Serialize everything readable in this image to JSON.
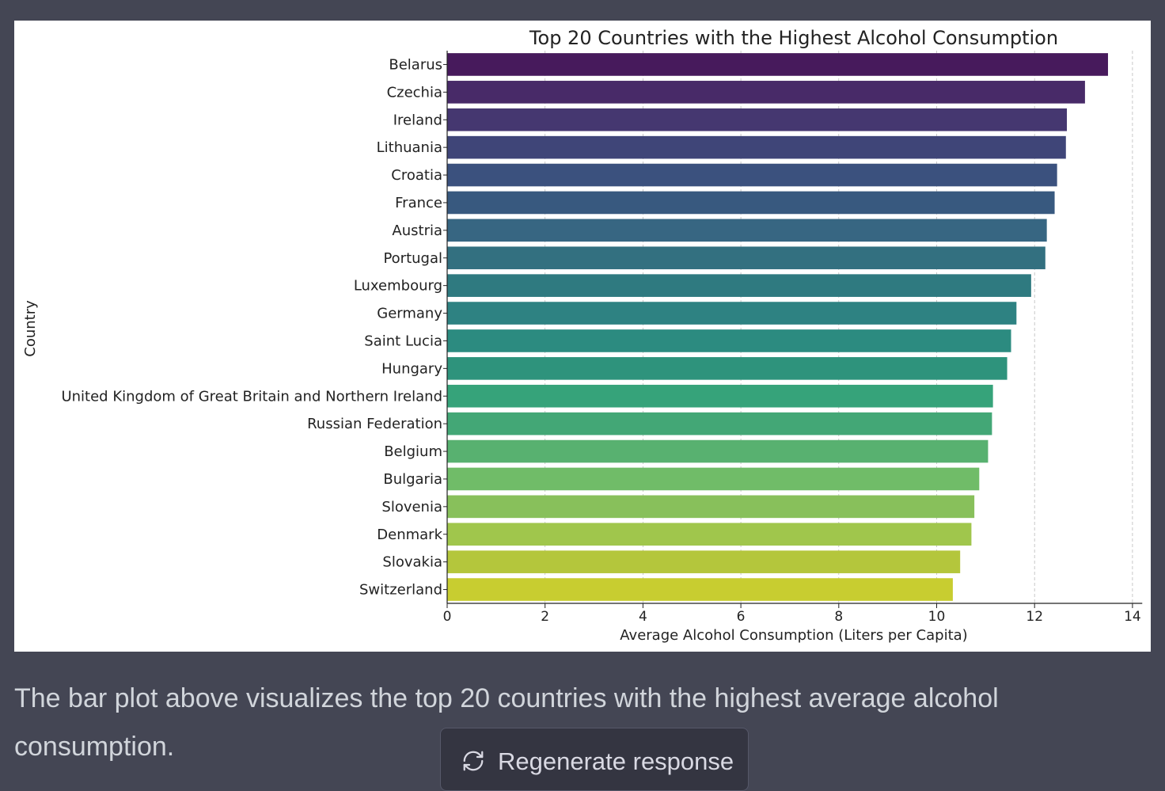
{
  "message": {
    "text": "The bar plot above visualizes the top 20 countries with the highest average alcohol consumption."
  },
  "regenerate": {
    "label": "Regenerate response",
    "icon": "refresh-icon"
  },
  "chart_data": {
    "type": "bar",
    "orientation": "horizontal",
    "title": "Top 20 Countries with the Highest Alcohol Consumption",
    "xlabel": "Average Alcohol Consumption (Liters per Capita)",
    "ylabel": "Country",
    "xlim": [
      0,
      14.2
    ],
    "xticks": [
      0,
      2,
      4,
      6,
      8,
      10,
      12,
      14
    ],
    "grid": "vertical dashed",
    "colormap": "viridis",
    "categories": [
      "Belarus",
      "Czechia",
      "Ireland",
      "Lithuania",
      "Croatia",
      "France",
      "Austria",
      "Portugal",
      "Luxembourg",
      "Germany",
      "Saint Lucia",
      "Hungary",
      "United Kingdom of Great Britain and Northern Ireland",
      "Russian Federation",
      "Belgium",
      "Bulgaria",
      "Slovenia",
      "Denmark",
      "Slovakia",
      "Switzerland"
    ],
    "values": [
      13.5,
      13.03,
      12.66,
      12.64,
      12.46,
      12.41,
      12.25,
      12.22,
      11.93,
      11.63,
      11.52,
      11.44,
      11.15,
      11.13,
      11.05,
      10.87,
      10.77,
      10.71,
      10.48,
      10.33
    ],
    "colors": [
      "#471a5c",
      "#482a68",
      "#453770",
      "#3f4578",
      "#3b517e",
      "#38597f",
      "#376682",
      "#337080",
      "#2f7a80",
      "#2e8282",
      "#2c8b80",
      "#2e937c",
      "#36a37a",
      "#43a776",
      "#58b170",
      "#70bc68",
      "#88c05b",
      "#a0c64c",
      "#b4c63c",
      "#c8cd30"
    ]
  }
}
